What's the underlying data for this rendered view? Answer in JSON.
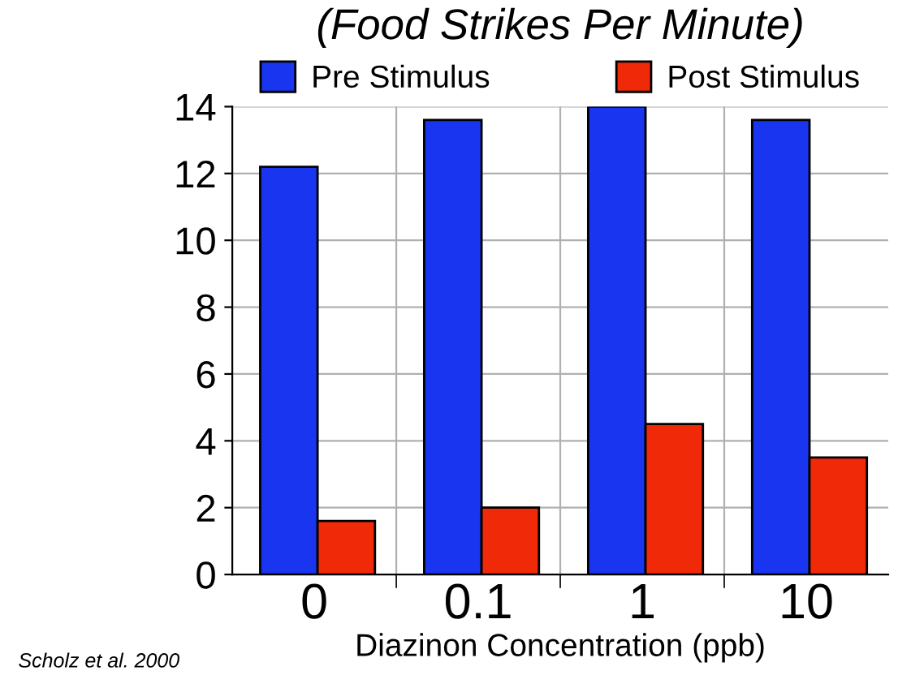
{
  "chart_data": {
    "type": "bar",
    "title": "(Food Strikes Per Minute)",
    "xlabel": "Diazinon Concentration (ppb)",
    "categories": [
      "0",
      "0.1",
      "1",
      "10"
    ],
    "series": [
      {
        "name": "Pre Stimulus",
        "color": "#1a35f0",
        "values": [
          12.2,
          13.6,
          14,
          13.6
        ]
      },
      {
        "name": "Post Stimulus",
        "color": "#f02a08",
        "values": [
          1.6,
          2.0,
          4.5,
          3.5
        ]
      }
    ],
    "ylim": [
      0,
      14
    ],
    "yticks": [
      0,
      2,
      4,
      6,
      8,
      10,
      12,
      14
    ],
    "grid": true,
    "legend": "top",
    "annotations": [
      "Scholz et al. 2000"
    ]
  }
}
